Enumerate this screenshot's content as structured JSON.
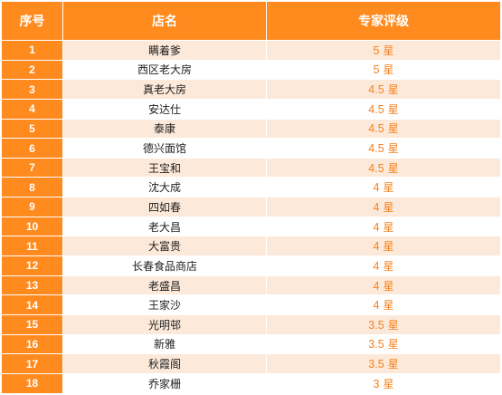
{
  "colors": {
    "header_bg": "#ff8a1d",
    "stripe": "#fde9d9",
    "rating_text": "#f58220"
  },
  "header": {
    "col_index": "序号",
    "col_name": "店名",
    "col_rating": "专家评级"
  },
  "rating_unit": "星",
  "rows": [
    {
      "index": "1",
      "name": "瞒着爹",
      "rating": "5"
    },
    {
      "index": "2",
      "name": "西区老大房",
      "rating": "5"
    },
    {
      "index": "3",
      "name": "真老大房",
      "rating": "4.5"
    },
    {
      "index": "4",
      "name": "安达仕",
      "rating": "4.5"
    },
    {
      "index": "5",
      "name": "泰康",
      "rating": "4.5"
    },
    {
      "index": "6",
      "name": "德兴面馆",
      "rating": "4.5"
    },
    {
      "index": "7",
      "name": "王宝和",
      "rating": "4.5"
    },
    {
      "index": "8",
      "name": "沈大成",
      "rating": "4"
    },
    {
      "index": "9",
      "name": "四如春",
      "rating": "4"
    },
    {
      "index": "10",
      "name": "老大昌",
      "rating": "4"
    },
    {
      "index": "11",
      "name": "大富贵",
      "rating": "4"
    },
    {
      "index": "12",
      "name": "长春食品商店",
      "rating": "4"
    },
    {
      "index": "13",
      "name": "老盛昌",
      "rating": "4"
    },
    {
      "index": "14",
      "name": "王家沙",
      "rating": "4"
    },
    {
      "index": "15",
      "name": "光明邨",
      "rating": "3.5"
    },
    {
      "index": "16",
      "name": "新雅",
      "rating": "3.5"
    },
    {
      "index": "17",
      "name": "秋霞阁",
      "rating": "3.5"
    },
    {
      "index": "18",
      "name": "乔家栅",
      "rating": "3"
    }
  ]
}
